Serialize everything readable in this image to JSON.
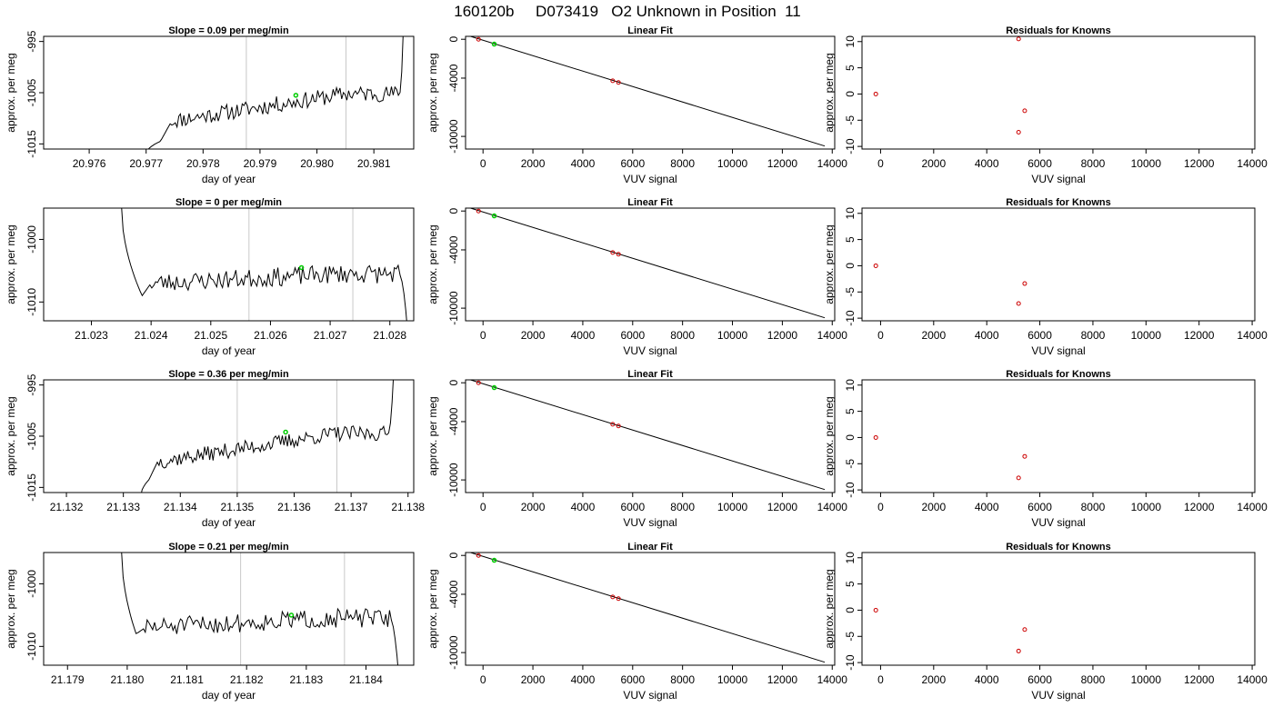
{
  "header": {
    "title": "160120b     D073419   O2 Unknown in Position  11"
  },
  "colors": {
    "trace": "#000000",
    "marker_green": "#00cc00",
    "marker_red": "#cc0000",
    "vline": "#c8c8c8"
  },
  "chart_data": [
    {
      "type": "line",
      "row": 0,
      "title": "Slope =  0.09  per meg/min",
      "xlabel": "day of year",
      "ylabel": "approx. per meg",
      "xlim": [
        20.9752,
        20.9817
      ],
      "ylim": [
        -1016,
        -994
      ],
      "xticks": [
        20.976,
        20.977,
        20.978,
        20.979,
        20.98,
        20.981
      ],
      "xtick_labels": [
        "20.976",
        "20.977",
        "20.978",
        "20.979",
        "20.980",
        "20.981"
      ],
      "yticks": [
        -995,
        -1005,
        -1015
      ],
      "ytick_labels": [
        "-995",
        "-1005",
        "-1015"
      ],
      "vlines": [
        20.97876,
        20.98051
      ],
      "trace_start": 20.977,
      "trace_end": 20.98152,
      "rise_start": 20.97725,
      "base_start": 20.97745,
      "plateau_end": 20.98145,
      "y_start": -1017,
      "y_rise": -1014.5,
      "y_base": -1010.5,
      "y_plateau": -1005.2,
      "y_end": -992,
      "noise": 1.6,
      "seed": 11,
      "green_point": [
        20.97963,
        -1005.5
      ]
    },
    {
      "type": "line",
      "row": 1,
      "title": "Slope =  0  per meg/min",
      "xlabel": "day of year",
      "ylabel": "approx. per meg",
      "xlim": [
        21.0222,
        21.0284
      ],
      "ylim": [
        -1013,
        -995
      ],
      "xticks": [
        21.023,
        21.024,
        21.025,
        21.026,
        21.027,
        21.028
      ],
      "xtick_labels": [
        "21.023",
        "21.024",
        "21.025",
        "21.026",
        "21.027",
        "21.028"
      ],
      "yticks": [
        -1000,
        -1010
      ],
      "ytick_labels": [
        "-1000",
        "-1010"
      ],
      "vlines": [
        21.02564,
        21.02738
      ],
      "trace_start": 21.0235,
      "trace_end": 21.0283,
      "rise_start": 21.02385,
      "base_start": 21.024,
      "plateau_end": 21.02815,
      "y_start": -994,
      "y_rise": -1009,
      "y_base": -1007,
      "y_plateau": -1005.5,
      "y_end": -1015,
      "noise": 1.5,
      "seed": 23,
      "green_point": [
        21.02652,
        -1004.5
      ]
    },
    {
      "type": "line",
      "row": 2,
      "title": "Slope =  0.36  per meg/min",
      "xlabel": "day of year",
      "ylabel": "approx. per meg",
      "xlim": [
        21.1316,
        21.1381
      ],
      "ylim": [
        -1016,
        -994
      ],
      "xticks": [
        21.132,
        21.133,
        21.134,
        21.135,
        21.136,
        21.137,
        21.138
      ],
      "xtick_labels": [
        "21.132",
        "21.133",
        "21.134",
        "21.135",
        "21.136",
        "21.137",
        "21.138"
      ],
      "yticks": [
        -995,
        -1005,
        -1015
      ],
      "ytick_labels": [
        "-995",
        "-1005",
        "-1015"
      ],
      "vlines": [
        21.135,
        21.13675
      ],
      "trace_start": 21.1333,
      "trace_end": 21.13775,
      "rise_start": 21.13345,
      "base_start": 21.1336,
      "plateau_end": 21.13765,
      "y_start": -1017,
      "y_rise": -1013.5,
      "y_base": -1010,
      "y_plateau": -1004.5,
      "y_end": -992,
      "noise": 1.5,
      "seed": 37,
      "green_point": [
        21.13585,
        -1004.2
      ]
    },
    {
      "type": "line",
      "row": 3,
      "title": "Slope =  0.21  per meg/min",
      "xlabel": "day of year",
      "ylabel": "approx. per meg",
      "xlim": [
        21.1786,
        21.1848
      ],
      "ylim": [
        -1013,
        -995
      ],
      "xticks": [
        21.179,
        21.18,
        21.181,
        21.182,
        21.183,
        21.184
      ],
      "xtick_labels": [
        "21.179",
        "21.180",
        "21.181",
        "21.182",
        "21.183",
        "21.184"
      ],
      "yticks": [
        -1000,
        -1010
      ],
      "ytick_labels": [
        "-1000",
        "-1010"
      ],
      "vlines": [
        21.1819,
        21.18364
      ],
      "trace_start": 21.1799,
      "trace_end": 21.18455,
      "rise_start": 21.18015,
      "base_start": 21.1803,
      "plateau_end": 21.1844,
      "y_start": -994,
      "y_rise": -1008,
      "y_base": -1007,
      "y_plateau": -1005.5,
      "y_end": -1015,
      "noise": 1.5,
      "seed": 51,
      "green_point": [
        21.18275,
        -1005
      ]
    },
    {
      "type": "scatter",
      "row": 0,
      "subtype": "linear-fit",
      "title": "Linear Fit",
      "xlabel": "VUV signal",
      "ylabel": "approx. per meg",
      "xlim": [
        -700,
        14100
      ],
      "ylim": [
        -11300,
        300
      ],
      "xticks": [
        0,
        2000,
        4000,
        6000,
        8000,
        10000,
        12000,
        14000
      ],
      "xtick_labels": [
        "0",
        "2000",
        "4000",
        "6000",
        "8000",
        "10000",
        "12000",
        "14000"
      ],
      "yticks": [
        0,
        -4000,
        -10000
      ],
      "ytick_labels": [
        "0",
        "-4000",
        "-10000"
      ],
      "fit_line": [
        [
          -500,
          300
        ],
        [
          13700,
          -10990
        ]
      ],
      "known_points": [
        [
          -180,
          0
        ],
        [
          5200,
          -4270
        ],
        [
          5430,
          -4450
        ]
      ],
      "unknown_points": [
        [
          450,
          -500
        ]
      ]
    },
    {
      "type": "scatter",
      "row": 1,
      "subtype": "linear-fit",
      "title": "Linear Fit",
      "xlabel": "VUV signal",
      "ylabel": "approx. per meg",
      "xlim": [
        -700,
        14100
      ],
      "ylim": [
        -11300,
        300
      ],
      "xticks": [
        0,
        2000,
        4000,
        6000,
        8000,
        10000,
        12000,
        14000
      ],
      "xtick_labels": [
        "0",
        "2000",
        "4000",
        "6000",
        "8000",
        "10000",
        "12000",
        "14000"
      ],
      "yticks": [
        0,
        -4000,
        -10000
      ],
      "ytick_labels": [
        "0",
        "-4000",
        "-10000"
      ],
      "fit_line": [
        [
          -500,
          300
        ],
        [
          13700,
          -10990
        ]
      ],
      "known_points": [
        [
          -180,
          0
        ],
        [
          5200,
          -4270
        ],
        [
          5430,
          -4450
        ]
      ],
      "unknown_points": [
        [
          450,
          -500
        ]
      ]
    },
    {
      "type": "scatter",
      "row": 2,
      "subtype": "linear-fit",
      "title": "Linear Fit",
      "xlabel": "VUV signal",
      "ylabel": "approx. per meg",
      "xlim": [
        -700,
        14100
      ],
      "ylim": [
        -11300,
        300
      ],
      "xticks": [
        0,
        2000,
        4000,
        6000,
        8000,
        10000,
        12000,
        14000
      ],
      "xtick_labels": [
        "0",
        "2000",
        "4000",
        "6000",
        "8000",
        "10000",
        "12000",
        "14000"
      ],
      "yticks": [
        0,
        -4000,
        -10000
      ],
      "ytick_labels": [
        "0",
        "-4000",
        "-10000"
      ],
      "fit_line": [
        [
          -500,
          300
        ],
        [
          13700,
          -10990
        ]
      ],
      "known_points": [
        [
          -180,
          0
        ],
        [
          5200,
          -4270
        ],
        [
          5430,
          -4450
        ]
      ],
      "unknown_points": [
        [
          450,
          -500
        ]
      ]
    },
    {
      "type": "scatter",
      "row": 3,
      "subtype": "linear-fit",
      "title": "Linear Fit",
      "xlabel": "VUV signal",
      "ylabel": "approx. per meg",
      "xlim": [
        -700,
        14100
      ],
      "ylim": [
        -11300,
        300
      ],
      "xticks": [
        0,
        2000,
        4000,
        6000,
        8000,
        10000,
        12000,
        14000
      ],
      "xtick_labels": [
        "0",
        "2000",
        "4000",
        "6000",
        "8000",
        "10000",
        "12000",
        "14000"
      ],
      "yticks": [
        0,
        -4000,
        -10000
      ],
      "ytick_labels": [
        "0",
        "-4000",
        "-10000"
      ],
      "fit_line": [
        [
          -500,
          300
        ],
        [
          13700,
          -10990
        ]
      ],
      "known_points": [
        [
          -180,
          0
        ],
        [
          5200,
          -4270
        ],
        [
          5430,
          -4450
        ]
      ],
      "unknown_points": [
        [
          450,
          -500
        ]
      ]
    },
    {
      "type": "scatter",
      "row": 0,
      "subtype": "residuals",
      "title": "Residuals for Knowns",
      "xlabel": "VUV signal",
      "ylabel": "approx. per meg",
      "xlim": [
        -700,
        14100
      ],
      "ylim": [
        -10.5,
        11
      ],
      "xticks": [
        0,
        2000,
        4000,
        6000,
        8000,
        10000,
        12000,
        14000
      ],
      "xtick_labels": [
        "0",
        "2000",
        "4000",
        "6000",
        "8000",
        "10000",
        "12000",
        "14000"
      ],
      "yticks": [
        10,
        5,
        0,
        -5,
        -10
      ],
      "ytick_labels": [
        "10",
        "5",
        "0",
        "-5",
        "-10"
      ],
      "points": [
        [
          -180,
          0
        ],
        [
          5200,
          10.5
        ],
        [
          5430,
          -3.2
        ],
        [
          5200,
          -7.3
        ]
      ]
    },
    {
      "type": "scatter",
      "row": 1,
      "subtype": "residuals",
      "title": "Residuals for Knowns",
      "xlabel": "VUV signal",
      "ylabel": "approx. per meg",
      "xlim": [
        -700,
        14100
      ],
      "ylim": [
        -10.5,
        11
      ],
      "xticks": [
        0,
        2000,
        4000,
        6000,
        8000,
        10000,
        12000,
        14000
      ],
      "xtick_labels": [
        "0",
        "2000",
        "4000",
        "6000",
        "8000",
        "10000",
        "12000",
        "14000"
      ],
      "yticks": [
        10,
        5,
        0,
        -5,
        -10
      ],
      "ytick_labels": [
        "10",
        "5",
        "0",
        "-5",
        "-10"
      ],
      "points": [
        [
          -180,
          0
        ],
        [
          5430,
          -3.4
        ],
        [
          5200,
          -7.2
        ]
      ]
    },
    {
      "type": "scatter",
      "row": 2,
      "subtype": "residuals",
      "title": "Residuals for Knowns",
      "xlabel": "VUV signal",
      "ylabel": "approx. per meg",
      "xlim": [
        -700,
        14100
      ],
      "ylim": [
        -10.5,
        11
      ],
      "xticks": [
        0,
        2000,
        4000,
        6000,
        8000,
        10000,
        12000,
        14000
      ],
      "xtick_labels": [
        "0",
        "2000",
        "4000",
        "6000",
        "8000",
        "10000",
        "12000",
        "14000"
      ],
      "yticks": [
        10,
        5,
        0,
        -5,
        -10
      ],
      "ytick_labels": [
        "10",
        "5",
        "0",
        "-5",
        "-10"
      ],
      "points": [
        [
          -180,
          0
        ],
        [
          5430,
          -3.6
        ],
        [
          5200,
          -7.7
        ]
      ]
    },
    {
      "type": "scatter",
      "row": 3,
      "subtype": "residuals",
      "title": "Residuals for Knowns",
      "xlabel": "VUV signal",
      "ylabel": "approx. per meg",
      "xlim": [
        -700,
        14100
      ],
      "ylim": [
        -10.5,
        11
      ],
      "xticks": [
        0,
        2000,
        4000,
        6000,
        8000,
        10000,
        12000,
        14000
      ],
      "xtick_labels": [
        "0",
        "2000",
        "4000",
        "6000",
        "8000",
        "10000",
        "12000",
        "14000"
      ],
      "yticks": [
        10,
        5,
        0,
        -5,
        -10
      ],
      "ytick_labels": [
        "10",
        "5",
        "0",
        "-5",
        "-10"
      ],
      "points": [
        [
          -180,
          0
        ],
        [
          5430,
          -3.7
        ],
        [
          5200,
          -7.8
        ]
      ]
    }
  ]
}
